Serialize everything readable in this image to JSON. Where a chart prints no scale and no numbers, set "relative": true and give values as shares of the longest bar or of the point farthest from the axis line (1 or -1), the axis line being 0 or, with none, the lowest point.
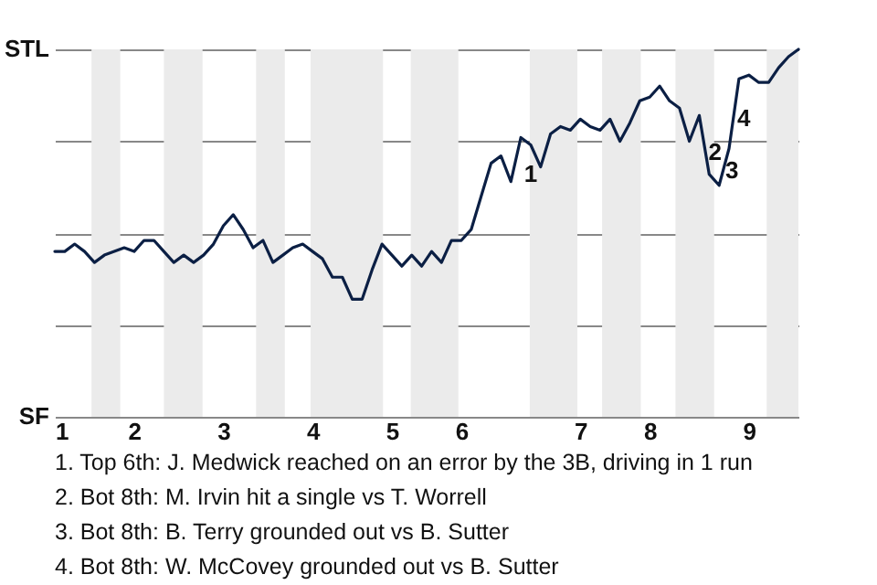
{
  "chart_data": {
    "type": "line",
    "relative": true,
    "categories": [
      "1",
      null,
      null,
      null,
      null,
      null,
      null,
      null,
      "2",
      null,
      null,
      null,
      null,
      null,
      null,
      null,
      null,
      "3",
      null,
      null,
      null,
      null,
      null,
      null,
      null,
      null,
      "4",
      null,
      null,
      null,
      null,
      null,
      null,
      null,
      "5",
      null,
      null,
      null,
      null,
      null,
      null,
      "6",
      null,
      null,
      null,
      null,
      null,
      null,
      null,
      null,
      null,
      null,
      null,
      "7",
      null,
      null,
      null,
      null,
      null,
      null,
      "8",
      null,
      null,
      null,
      null,
      null,
      null,
      null,
      null,
      null,
      "9",
      null,
      null,
      null,
      null,
      null
    ],
    "grid": "y",
    "marker": "none",
    "line_style": "solid",
    "series": [
      {
        "color": "#0b1f44",
        "values": [
          0.45,
          0.45,
          0.47,
          0.45,
          0.42,
          0.44,
          0.45,
          0.46,
          0.45,
          0.48,
          0.48,
          0.45,
          0.42,
          0.44,
          0.42,
          0.44,
          0.47,
          0.52,
          0.55,
          0.51,
          0.46,
          0.48,
          0.42,
          0.44,
          0.46,
          0.47,
          0.45,
          0.43,
          0.38,
          0.38,
          0.32,
          0.32,
          0.4,
          0.47,
          0.44,
          0.41,
          0.44,
          0.41,
          0.45,
          0.42,
          0.48,
          0.48,
          0.51,
          0.6,
          0.69,
          0.71,
          0.64,
          0.76,
          0.74,
          0.68,
          0.77,
          0.79,
          0.78,
          0.81,
          0.79,
          0.78,
          0.81,
          0.75,
          0.8,
          0.86,
          0.87,
          0.9,
          0.86,
          0.84,
          0.75,
          0.82,
          0.66,
          0.63,
          0.73,
          0.92,
          0.93,
          0.91,
          0.91,
          0.95,
          0.98,
          1.0
        ]
      }
    ],
    "annotations": [
      "STL",
      "SF",
      "1",
      "2",
      "3",
      "4",
      "1. Top 6th: J. Medwick reached on an error by the 3B, driving in 1 run",
      "2. Bot 8th: M. Irvin hit a single vs T. Worrell",
      "3. Bot 8th: B. Terry grounded out vs B. Sutter",
      "4. Bot 8th: W. McCovey grounded out vs B. Sutter"
    ]
  }
}
